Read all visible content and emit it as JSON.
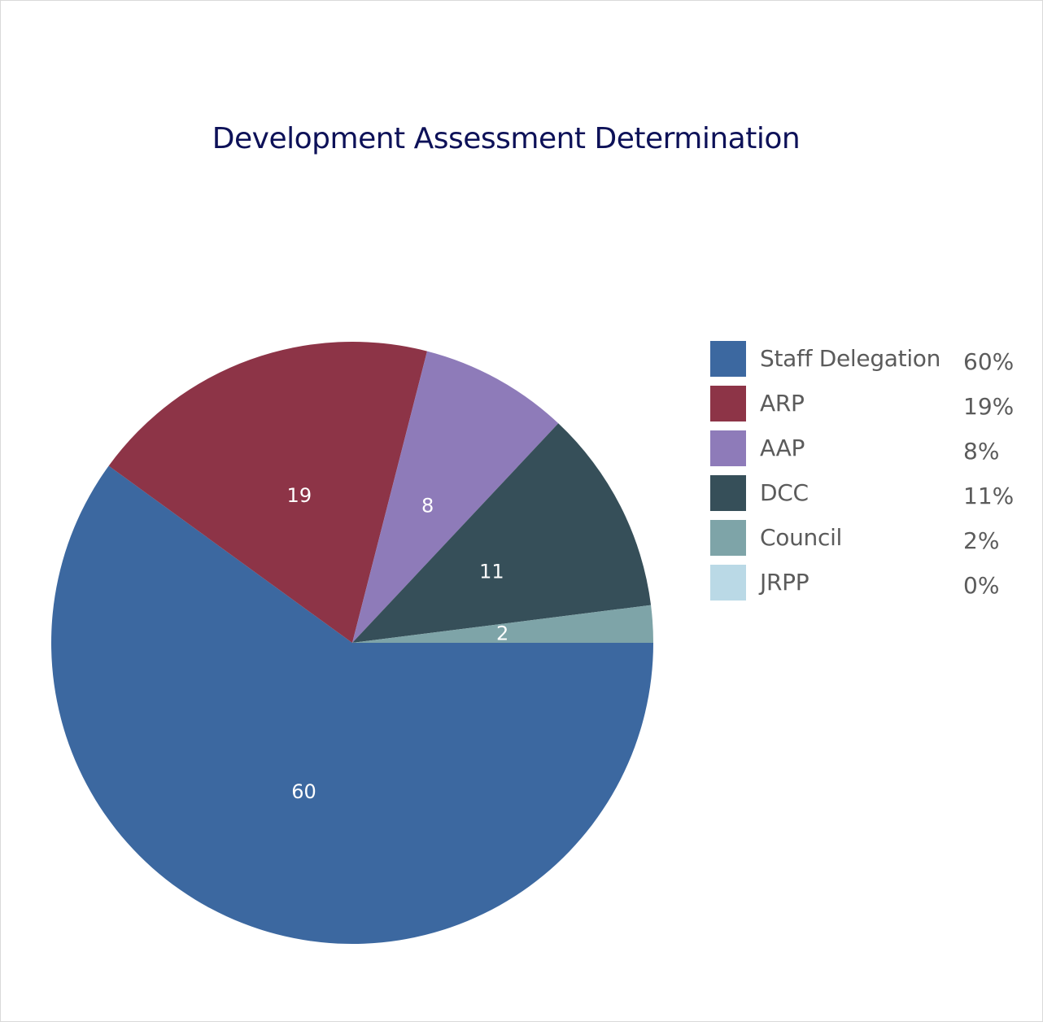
{
  "chart_data": {
    "type": "pie",
    "title": "Development Assessment Determination",
    "categories": [
      "Staff Delegation",
      "ARP",
      "AAP",
      "DCC",
      "Council",
      "JRPP"
    ],
    "values": [
      60,
      19,
      8,
      11,
      2,
      0
    ],
    "data_labels": [
      "60",
      "19",
      "8",
      "11",
      "2",
      ""
    ],
    "percent_labels": [
      "60%",
      "19%",
      "8%",
      "11%",
      "2%",
      "0%"
    ],
    "colors": [
      "#3c68a0",
      "#8d3447",
      "#8e7bb9",
      "#364f59",
      "#7ea4a8",
      "#bad9e6"
    ],
    "legend_position": "right",
    "start_angle": "3 o'clock",
    "direction": "clockwise"
  }
}
